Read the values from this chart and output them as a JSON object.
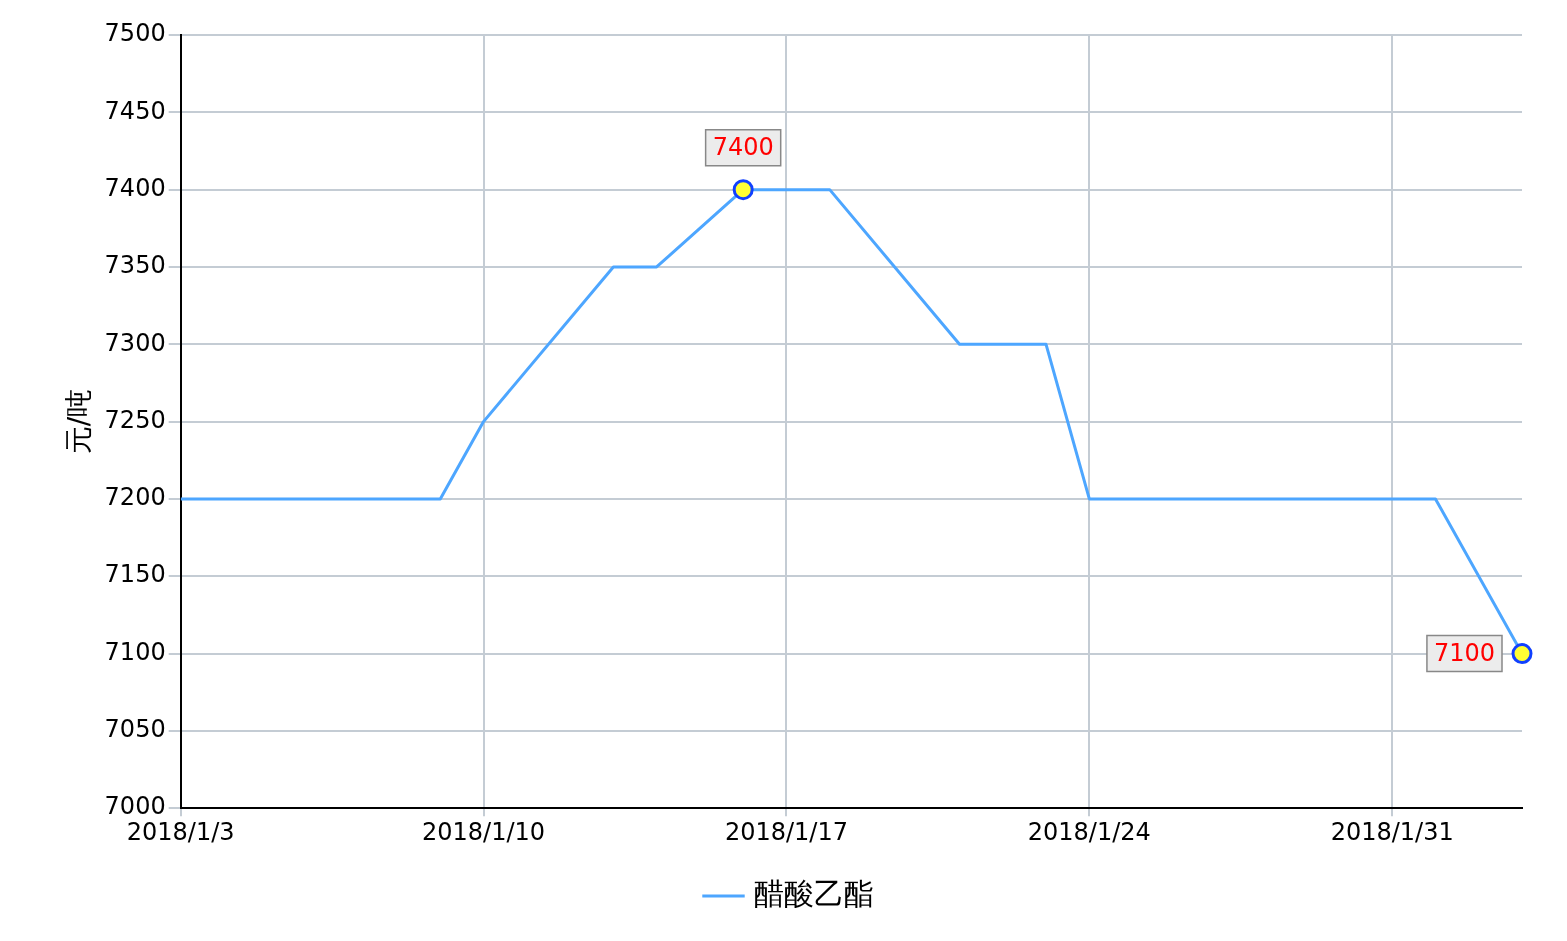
{
  "chart_data": {
    "type": "line",
    "ylabel": "元/吨",
    "x": [
      "2018-01-03",
      "2018-01-09",
      "2018-01-10",
      "2018-01-13",
      "2018-01-14",
      "2018-01-16",
      "2018-01-18",
      "2018-01-21",
      "2018-01-23",
      "2018-01-24",
      "2018-02-01",
      "2018-02-03"
    ],
    "series": [
      {
        "name": "醋酸乙酯",
        "color": "#4da6ff",
        "values": [
          7200,
          7200,
          7250,
          7350,
          7350,
          7400,
          7400,
          7300,
          7300,
          7200,
          7200,
          7100
        ],
        "value_labels": [
          null,
          null,
          null,
          null,
          null,
          "7400",
          null,
          null,
          null,
          null,
          null,
          "7100"
        ]
      }
    ],
    "xlim": [
      "2018-01-03",
      "2018-02-03"
    ],
    "xticks": [
      {
        "value": "2018-01-03",
        "label": "2018/1/3"
      },
      {
        "value": "2018-01-10",
        "label": "2018/1/10"
      },
      {
        "value": "2018-01-17",
        "label": "2018/1/17"
      },
      {
        "value": "2018-01-24",
        "label": "2018/1/24"
      },
      {
        "value": "2018-01-31",
        "label": "2018/1/31"
      }
    ],
    "ylim": [
      7000,
      7500
    ],
    "yticks": [
      7000,
      7050,
      7100,
      7150,
      7200,
      7250,
      7300,
      7350,
      7400,
      7450,
      7500
    ],
    "grid": true,
    "legend": "bottom",
    "line_style": "solid"
  }
}
